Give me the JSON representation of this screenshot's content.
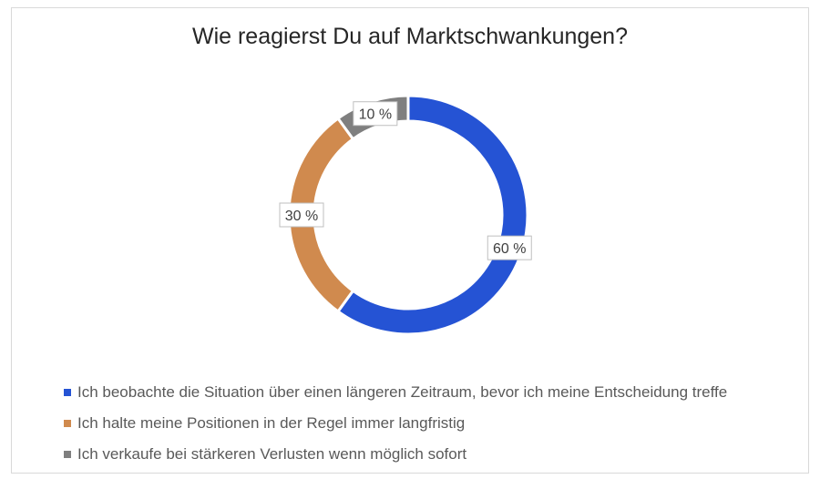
{
  "chart_data": {
    "type": "pie",
    "variant": "donut",
    "title": "Wie reagierst Du auf Marktschwankungen?",
    "categories": [
      "Ich beobachte die Situation über einen längeren Zeitraum, bevor ich meine Entscheidung treffe",
      "Ich halte meine Positionen in der Regel immer langfristig",
      "Ich verkaufe bei stärkeren Verlusten wenn möglich sofort"
    ],
    "values": [
      60,
      30,
      10
    ],
    "data_labels": [
      "60 %",
      "30 %",
      "10 %"
    ],
    "colors": [
      "#2553d4",
      "#d08a4e",
      "#7f7f7f"
    ],
    "legend_position": "bottom-left"
  }
}
